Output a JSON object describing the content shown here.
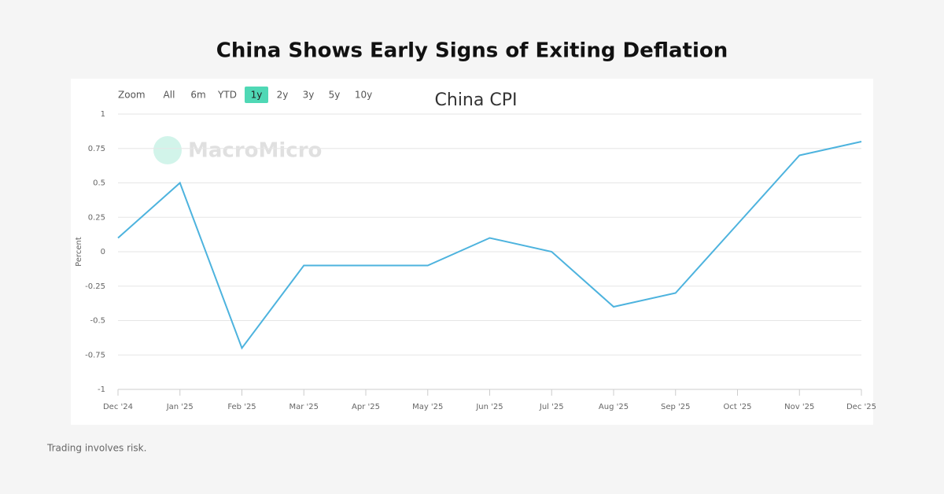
{
  "page_title": "China Shows Early Signs of Exiting Deflation",
  "footer": "Trading involves risk.",
  "chart_data": {
    "type": "line",
    "title": "China CPI",
    "watermark": "MacroMicro",
    "y_label": "Percent",
    "range_selector": {
      "label": "Zoom",
      "buttons": [
        "All",
        "6m",
        "YTD",
        "1y",
        "2y",
        "3y",
        "5y",
        "10y"
      ],
      "selected": "1y"
    },
    "categories": [
      "Dec '24",
      "Jan '25",
      "Feb '25",
      "Mar '25",
      "Apr '25",
      "May '25",
      "Jun '25",
      "Jul '25",
      "Aug '25",
      "Sep '25",
      "Oct '25",
      "Nov '25",
      "Dec '25"
    ],
    "series": [
      {
        "name": "China CPI",
        "color": "#4db3de",
        "values": [
          0.1,
          0.5,
          -0.7,
          -0.1,
          -0.1,
          -0.1,
          0.1,
          0.0,
          -0.4,
          -0.3,
          0.2,
          0.7,
          0.8
        ]
      }
    ],
    "ylim": [
      -1,
      1
    ],
    "yticks": [
      1,
      0.75,
      0.5,
      0.25,
      0,
      -0.25,
      -0.5,
      -0.75,
      -1
    ],
    "grid": true
  }
}
